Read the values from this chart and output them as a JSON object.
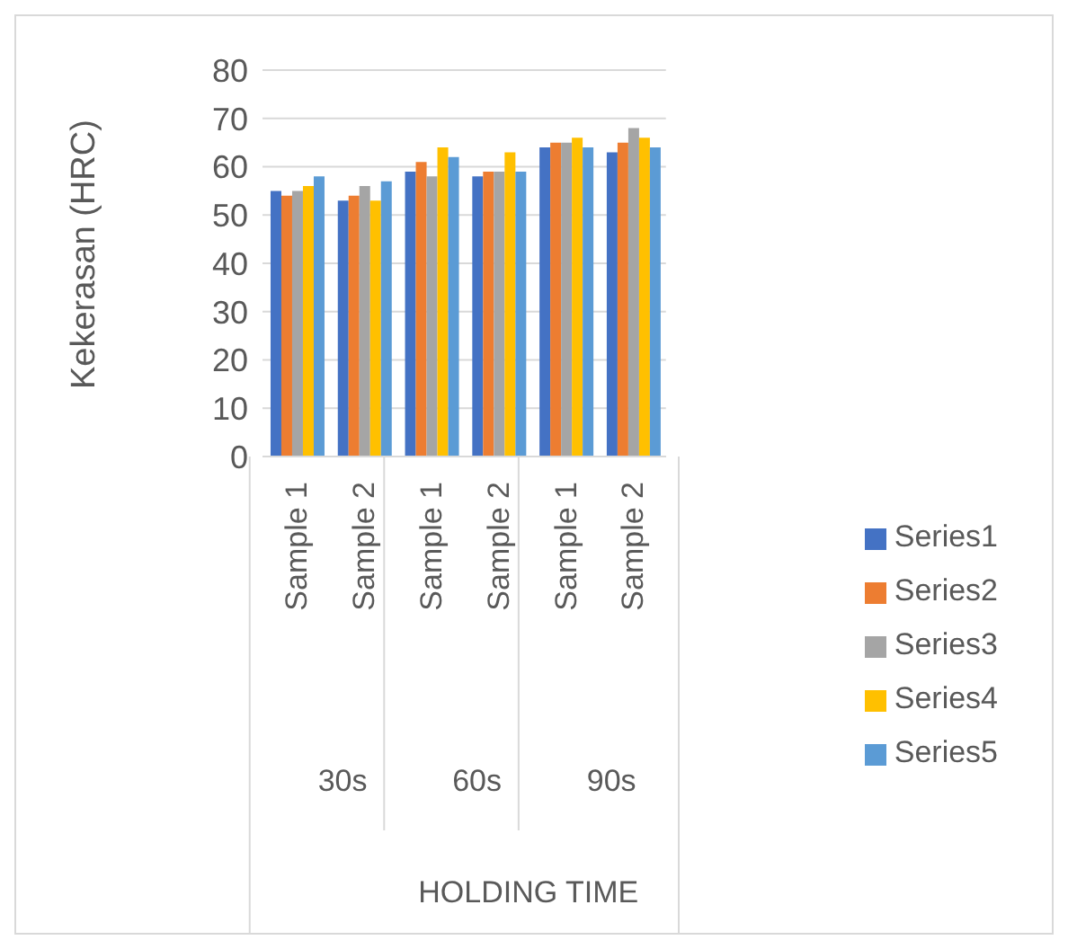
{
  "chart_data": {
    "type": "bar",
    "ylabel": "Kekerasan (HRC)",
    "categories": [
      "Sample 1",
      "Sample 2",
      "Sample 1",
      "Sample 2",
      "Sample 1",
      "Sample 2"
    ],
    "annotations": [
      "30s",
      "60s",
      "90s",
      "HOLDING TIME"
    ],
    "series": [
      {
        "name": "Series1",
        "color": "#4472c4",
        "values": [
          55,
          53,
          59,
          58,
          64,
          63
        ]
      },
      {
        "name": "Series2",
        "color": "#ed7d31",
        "values": [
          54,
          54,
          61,
          59,
          65,
          65
        ]
      },
      {
        "name": "Series3",
        "color": "#a5a5a5",
        "values": [
          55,
          56,
          58,
          59,
          65,
          68
        ]
      },
      {
        "name": "Series4",
        "color": "#ffc000",
        "values": [
          56,
          53,
          64,
          63,
          66,
          66
        ]
      },
      {
        "name": "Series5",
        "color": "#5b9bd5",
        "values": [
          58,
          57,
          62,
          59,
          64,
          64
        ]
      }
    ],
    "ylim": [
      0,
      80
    ],
    "yticks": [
      0,
      10,
      20,
      30,
      40,
      50,
      60,
      70,
      80
    ],
    "grid": "y",
    "legend": "right"
  }
}
